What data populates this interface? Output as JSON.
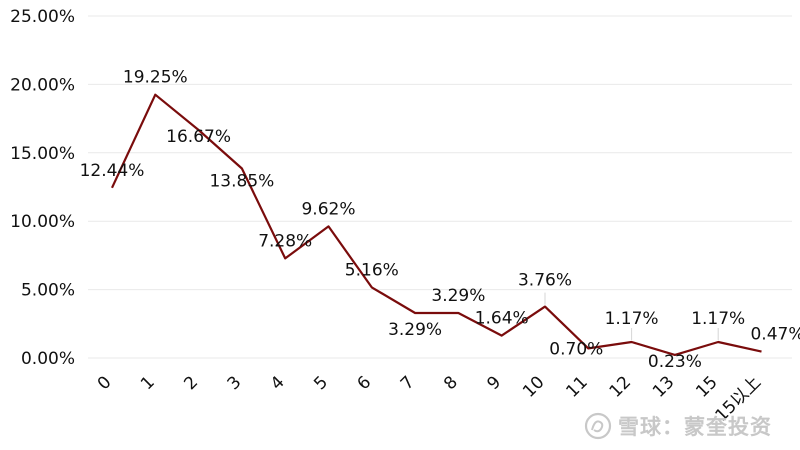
{
  "chart_data": {
    "type": "line",
    "categories": [
      "0",
      "1",
      "2",
      "3",
      "4",
      "5",
      "6",
      "7",
      "8",
      "9",
      "10",
      "11",
      "12",
      "13",
      "15",
      "15以上"
    ],
    "series": [
      {
        "values": [
          12.44,
          19.25,
          16.67,
          13.85,
          7.28,
          9.62,
          5.16,
          3.29,
          3.29,
          1.64,
          3.76,
          0.7,
          1.17,
          0.23,
          1.17,
          0.47
        ],
        "labels": [
          "12.44%",
          "19.25%",
          "16.67%",
          "13.85%",
          "7.28%",
          "9.62%",
          "5.16%",
          "3.29%",
          "3.29%",
          "1.64%",
          "3.76%",
          "0.70%",
          "1.17%",
          "0.23%",
          "1.17%",
          "0.47%"
        ]
      }
    ],
    "yticks": [
      0,
      5,
      10,
      15,
      20,
      25
    ],
    "ytick_labels": [
      "0.00%",
      "5.00%",
      "10.00%",
      "15.00%",
      "20.00%",
      "25.00%"
    ],
    "ylim": [
      0,
      25
    ],
    "grid": true,
    "colors": {
      "line": "#7a0c0c",
      "grid": "#e9e9e9",
      "text": "#111111"
    }
  },
  "watermark": {
    "text": "雪球：蒙奎投资",
    "icon": "snowball-logo-icon"
  }
}
